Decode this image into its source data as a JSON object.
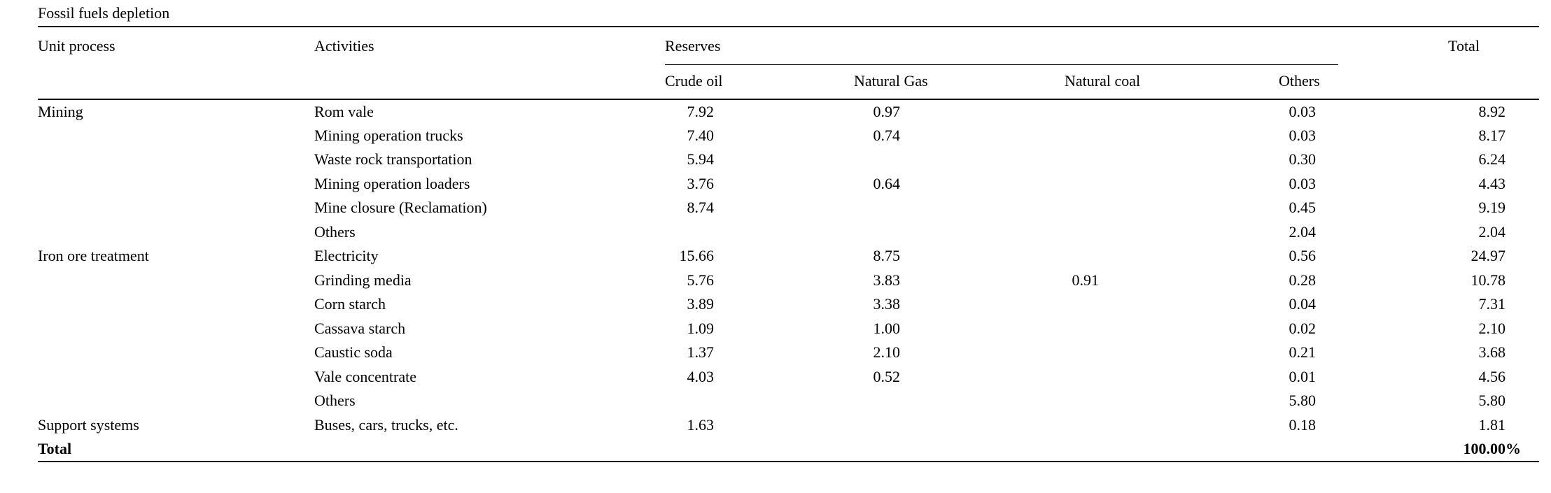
{
  "page": {
    "background": "#ffffff",
    "text_color": "#000000",
    "rule_color": "#000000"
  },
  "table": {
    "caption": "Fossil fuels depletion",
    "group_headers": {
      "unit_process": "Unit process",
      "activities": "Activities",
      "reserves": "Reserves",
      "total": "Total"
    },
    "sub_headers": [
      "Crude oil",
      "Natural Gas",
      "Natural coal",
      "Others"
    ],
    "rows": [
      {
        "unit_process": "Mining",
        "activity": "Rom vale",
        "crude_oil": "7.92",
        "natural_gas": "0.97",
        "natural_coal": "",
        "others": "0.03",
        "total": "8.92"
      },
      {
        "unit_process": "",
        "activity": "Mining operation trucks",
        "crude_oil": "7.40",
        "natural_gas": "0.74",
        "natural_coal": "",
        "others": "0.03",
        "total": "8.17"
      },
      {
        "unit_process": "",
        "activity": "Waste rock transportation",
        "crude_oil": "5.94",
        "natural_gas": "",
        "natural_coal": "",
        "others": "0.30",
        "total": "6.24"
      },
      {
        "unit_process": "",
        "activity": "Mining operation loaders",
        "crude_oil": "3.76",
        "natural_gas": "0.64",
        "natural_coal": "",
        "others": "0.03",
        "total": "4.43"
      },
      {
        "unit_process": "",
        "activity": "Mine closure (Reclamation)",
        "crude_oil": "8.74",
        "natural_gas": "",
        "natural_coal": "",
        "others": "0.45",
        "total": "9.19"
      },
      {
        "unit_process": "",
        "activity": "Others",
        "crude_oil": "",
        "natural_gas": "",
        "natural_coal": "",
        "others": "2.04",
        "total": "2.04"
      },
      {
        "unit_process": "Iron ore treatment",
        "activity": "Electricity",
        "crude_oil": "15.66",
        "natural_gas": "8.75",
        "natural_coal": "",
        "others": "0.56",
        "total": "24.97"
      },
      {
        "unit_process": "",
        "activity": "Grinding media",
        "crude_oil": "5.76",
        "natural_gas": "3.83",
        "natural_coal": "0.91",
        "others": "0.28",
        "total": "10.78"
      },
      {
        "unit_process": "",
        "activity": "Corn starch",
        "crude_oil": "3.89",
        "natural_gas": "3.38",
        "natural_coal": "",
        "others": "0.04",
        "total": "7.31"
      },
      {
        "unit_process": "",
        "activity": "Cassava starch",
        "crude_oil": "1.09",
        "natural_gas": "1.00",
        "natural_coal": "",
        "others": "0.02",
        "total": "2.10"
      },
      {
        "unit_process": "",
        "activity": "Caustic soda",
        "crude_oil": "1.37",
        "natural_gas": "2.10",
        "natural_coal": "",
        "others": "0.21",
        "total": "3.68"
      },
      {
        "unit_process": "",
        "activity": "Vale concentrate",
        "crude_oil": "4.03",
        "natural_gas": "0.52",
        "natural_coal": "",
        "others": "0.01",
        "total": "4.56"
      },
      {
        "unit_process": "",
        "activity": "Others",
        "crude_oil": "",
        "natural_gas": "",
        "natural_coal": "",
        "others": "5.80",
        "total": "5.80"
      },
      {
        "unit_process": "Support systems",
        "activity": "Buses, cars, trucks, etc.",
        "crude_oil": "1.63",
        "natural_gas": "",
        "natural_coal": "",
        "others": "0.18",
        "total": "1.81"
      }
    ],
    "footer": {
      "label": "Total",
      "total": "100.00%"
    }
  }
}
